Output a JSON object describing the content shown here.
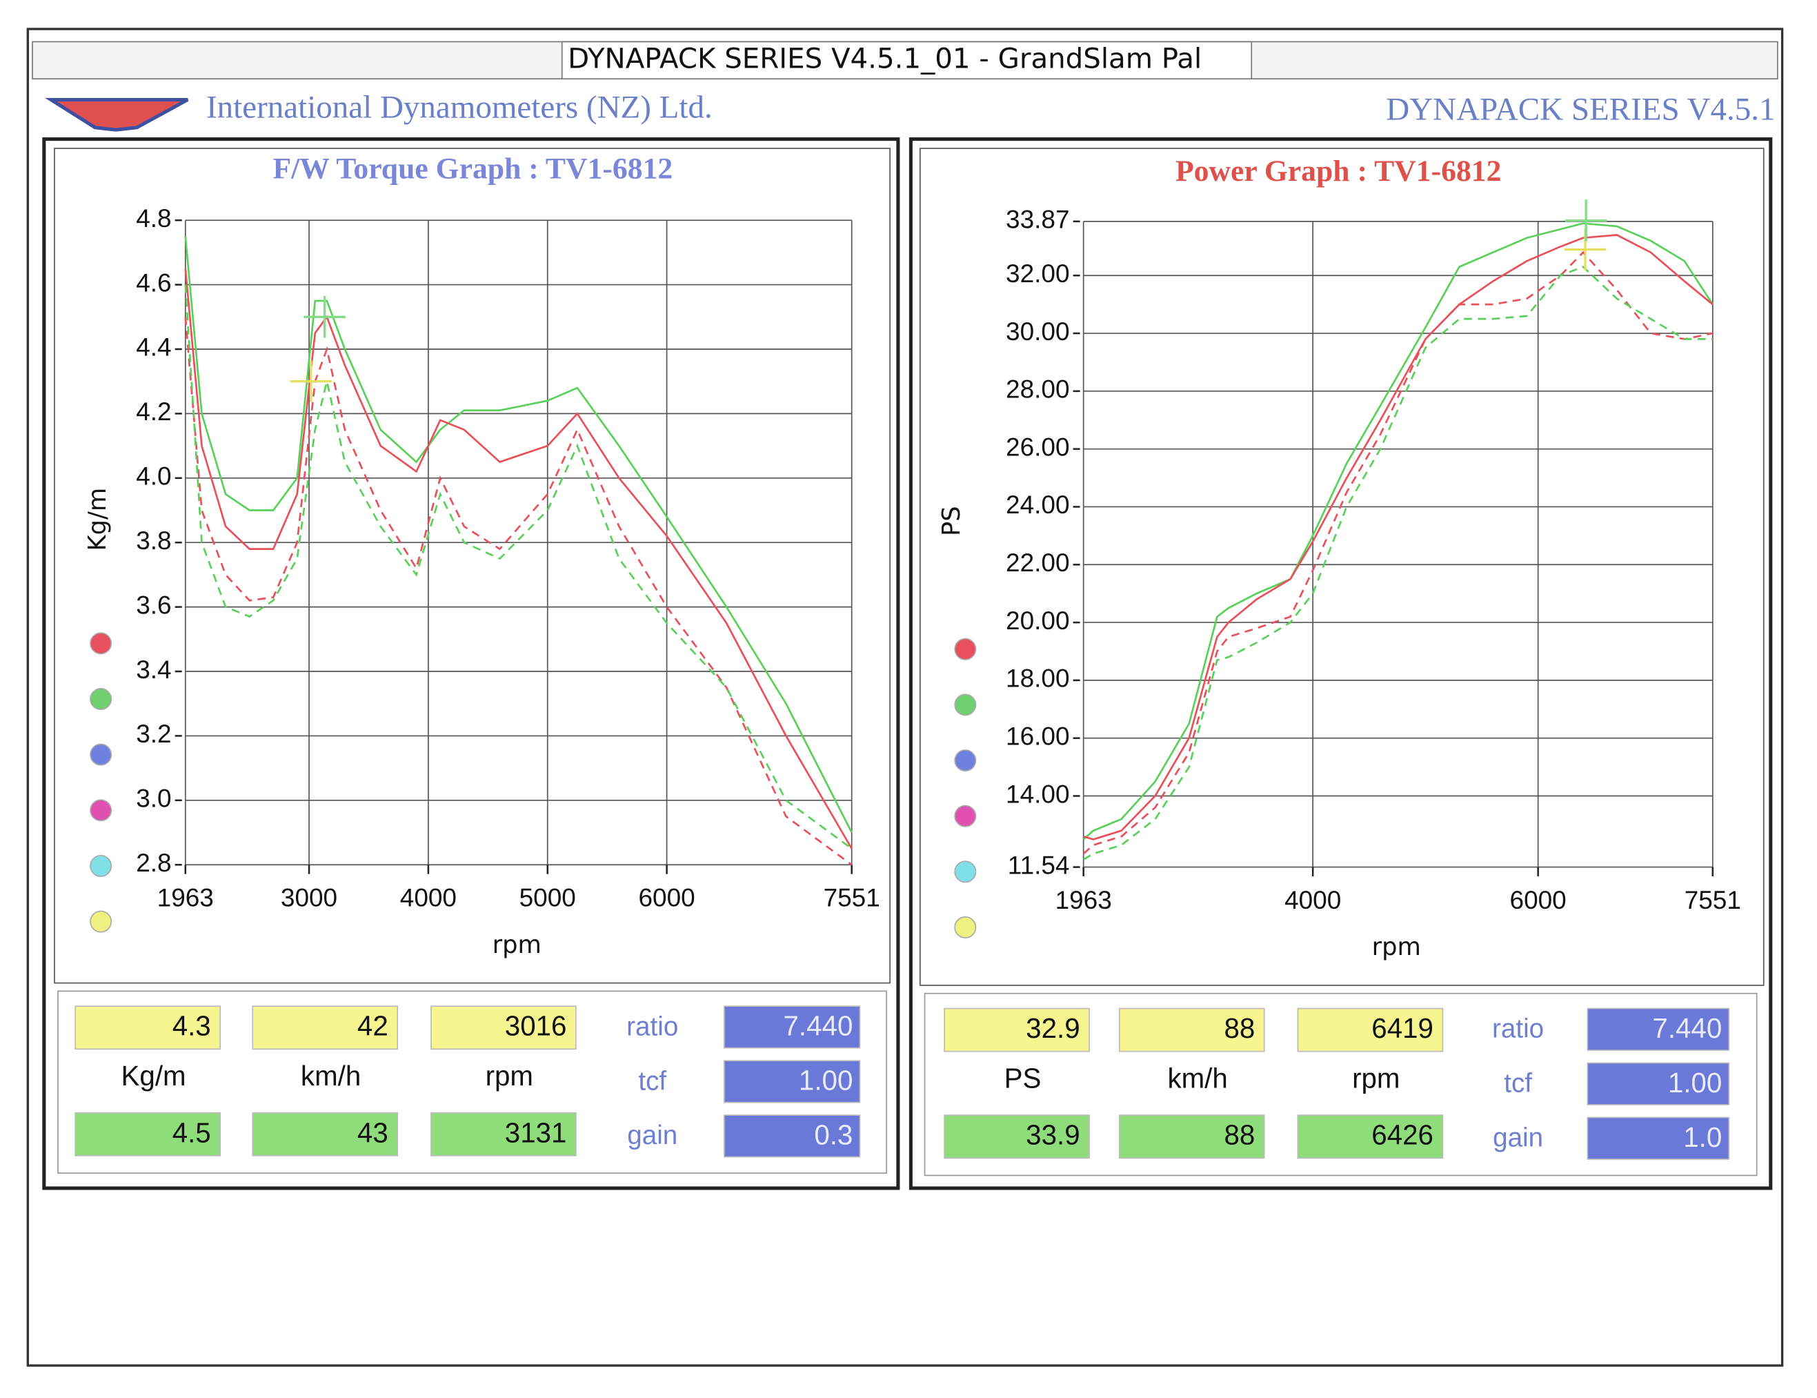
{
  "header": {
    "window_title": "DYNAPACK SERIES V4.5.1_01  - GrandSlam Pal",
    "company": "International Dynamometers (NZ) Ltd.",
    "product": "DYNAPACK SERIES V4.5.1"
  },
  "chart_data": [
    {
      "type": "line",
      "title": "F/W Torque Graph : TV1-6812",
      "xlabel": "rpm",
      "ylabel": "Kg/m",
      "grid": true,
      "x": [
        1963,
        2100,
        2300,
        2500,
        2700,
        2900,
        3050,
        3150,
        3300,
        3600,
        3900,
        4100,
        4300,
        4600,
        5000,
        5250,
        5600,
        6000,
        6500,
        7000,
        7551
      ],
      "xlim": [
        1963,
        7551
      ],
      "xticks": [
        1963,
        3000,
        4000,
        5000,
        6000,
        7551
      ],
      "ylim": [
        2.8,
        4.8
      ],
      "yticks": [
        2.8,
        {
          "value": 3,
          "label": "3.0"
        },
        3.2,
        3.4,
        3.6,
        3.8,
        {
          "value": 4,
          "label": "4.0"
        },
        4.2,
        4.4,
        4.6,
        4.8
      ],
      "series": [
        {
          "color": "#5ad05a",
          "dash": false,
          "values": [
            4.75,
            4.2,
            3.95,
            3.9,
            3.9,
            4.0,
            4.55,
            4.55,
            4.4,
            4.15,
            4.05,
            4.15,
            4.21,
            4.21,
            4.24,
            4.28,
            4.1,
            3.88,
            3.6,
            3.3,
            2.9
          ]
        },
        {
          "color": "#e8505a",
          "dash": false,
          "values": [
            4.65,
            4.1,
            3.85,
            3.78,
            3.78,
            3.95,
            4.45,
            4.5,
            4.35,
            4.1,
            4.02,
            4.18,
            4.15,
            4.05,
            4.1,
            4.2,
            4.0,
            3.82,
            3.55,
            3.2,
            2.85
          ]
        },
        {
          "color": "#e8505a",
          "dash": true,
          "values": [
            4.5,
            3.9,
            3.7,
            3.62,
            3.63,
            3.8,
            4.3,
            4.4,
            4.15,
            3.9,
            3.72,
            4.0,
            3.85,
            3.78,
            3.95,
            4.15,
            3.85,
            3.6,
            3.35,
            2.95,
            2.8
          ]
        },
        {
          "color": "#5ad05a",
          "dash": true,
          "values": [
            4.6,
            3.8,
            3.6,
            3.57,
            3.62,
            3.75,
            4.15,
            4.3,
            4.05,
            3.85,
            3.7,
            3.95,
            3.8,
            3.75,
            3.9,
            4.1,
            3.75,
            3.55,
            3.35,
            3.0,
            2.85
          ]
        }
      ]
    },
    {
      "type": "line",
      "title": "Power Graph : TV1-6812",
      "xlabel": "rpm",
      "ylabel": "PS",
      "grid": true,
      "x": [
        1963,
        2050,
        2300,
        2600,
        2900,
        3150,
        3250,
        3500,
        3800,
        4000,
        4300,
        4600,
        5000,
        5300,
        5600,
        5900,
        6200,
        6400,
        6700,
        7000,
        7300,
        7551
      ],
      "xlim": [
        1963,
        7551
      ],
      "xticks": [
        1963,
        4000,
        6000,
        7551
      ],
      "ylim": [
        11.54,
        33.87
      ],
      "yticks": [
        11.54,
        {
          "value": 14,
          "label": "14.00"
        },
        {
          "value": 16,
          "label": "16.00"
        },
        {
          "value": 18,
          "label": "18.00"
        },
        {
          "value": 20,
          "label": "20.00"
        },
        {
          "value": 22,
          "label": "22.00"
        },
        {
          "value": 24,
          "label": "24.00"
        },
        {
          "value": 26,
          "label": "26.00"
        },
        {
          "value": 28,
          "label": "28.00"
        },
        {
          "value": 30,
          "label": "30.00"
        },
        {
          "value": 32,
          "label": "32.00"
        },
        33.87
      ],
      "series": [
        {
          "color": "#5ad05a",
          "dash": false,
          "values": [
            12.5,
            12.8,
            13.2,
            14.5,
            16.5,
            20.2,
            20.5,
            21.0,
            21.5,
            23.0,
            25.5,
            27.5,
            30.2,
            32.3,
            32.8,
            33.3,
            33.6,
            33.8,
            33.7,
            33.2,
            32.5,
            31.0
          ]
        },
        {
          "color": "#e8505a",
          "dash": false,
          "values": [
            12.6,
            12.5,
            12.8,
            14.0,
            16.0,
            19.5,
            20.0,
            20.8,
            21.5,
            22.8,
            25.0,
            27.0,
            29.8,
            31.0,
            31.8,
            32.5,
            33.0,
            33.3,
            33.4,
            32.8,
            31.8,
            31.0
          ]
        },
        {
          "color": "#e8505a",
          "dash": true,
          "values": [
            12.0,
            12.3,
            12.6,
            13.6,
            15.5,
            19.0,
            19.5,
            19.8,
            20.2,
            21.8,
            24.5,
            26.5,
            29.8,
            31.0,
            31.0,
            31.2,
            32.0,
            32.8,
            31.5,
            30.0,
            29.8,
            30.0
          ]
        },
        {
          "color": "#5ad05a",
          "dash": true,
          "values": [
            11.8,
            12.0,
            12.3,
            13.2,
            15.0,
            18.7,
            18.8,
            19.3,
            20.0,
            21.0,
            24.0,
            26.0,
            29.5,
            30.5,
            30.5,
            30.6,
            32.0,
            32.3,
            31.2,
            30.5,
            29.8,
            29.8
          ]
        }
      ]
    }
  ],
  "readouts": [
    {
      "cursor1": [
        "4.3",
        "42",
        "3016"
      ],
      "units": [
        "Kg/m",
        "km/h",
        "rpm"
      ],
      "cursor2": [
        "4.5",
        "43",
        "3131"
      ],
      "settings": [
        {
          "label": "ratio",
          "value": "7.440"
        },
        {
          "label": "tcf",
          "value": "1.00"
        },
        {
          "label": "gain",
          "value": "0.3"
        }
      ]
    },
    {
      "cursor1": [
        "32.9",
        "88",
        "6419"
      ],
      "units": [
        "PS",
        "km/h",
        "rpm"
      ],
      "cursor2": [
        "33.9",
        "88",
        "6426"
      ],
      "settings": [
        {
          "label": "ratio",
          "value": "7.440"
        },
        {
          "label": "tcf",
          "value": "1.00"
        },
        {
          "label": "gain",
          "value": "1.0"
        }
      ]
    }
  ]
}
